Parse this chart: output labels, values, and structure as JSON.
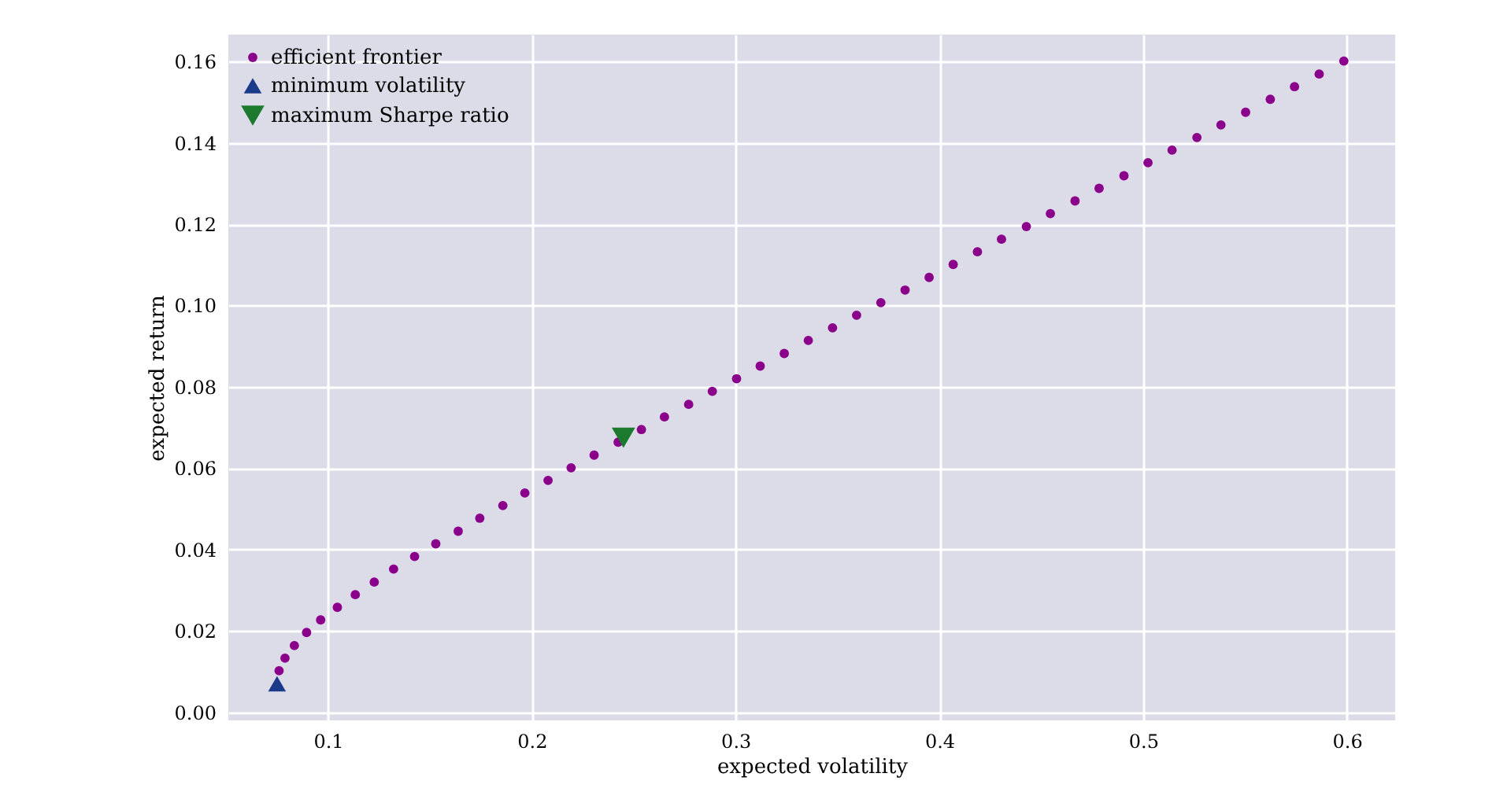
{
  "chart_data": {
    "type": "scatter",
    "xlabel": "expected volatility",
    "ylabel": "expected return",
    "xlim": [
      0.0511,
      0.6237
    ],
    "ylim": [
      -0.002,
      0.1666
    ],
    "xticks": [
      0.1,
      0.2,
      0.3,
      0.4,
      0.5,
      0.6
    ],
    "yticks": [
      {
        "value": 0,
        "label": "0.00"
      },
      {
        "value": 0.02,
        "label": "0.02"
      },
      {
        "value": 0.04,
        "label": "0.04"
      },
      {
        "value": 0.06,
        "label": "0.06"
      },
      {
        "value": 0.08,
        "label": "0.08"
      },
      {
        "value": 0.1,
        "label": "0.10"
      },
      {
        "value": 0.12,
        "label": "0.12"
      },
      {
        "value": 0.14,
        "label": "0.14"
      },
      {
        "value": 0.16,
        "label": "0.16"
      }
    ],
    "grid": true,
    "legend": "top left",
    "series": [
      {
        "name": "efficient frontier",
        "color": "#8b008b",
        "marker": "circle",
        "x": [
          0.076,
          0.0789,
          0.0835,
          0.0895,
          0.0964,
          0.1046,
          0.1134,
          0.1227,
          0.1322,
          0.1425,
          0.1529,
          0.1639,
          0.1745,
          0.1858,
          0.1966,
          0.208,
          0.2193,
          0.2306,
          0.2424,
          0.2538,
          0.2651,
          0.277,
          0.2886,
          0.3005,
          0.3121,
          0.3239,
          0.3357,
          0.3476,
          0.3594,
          0.3713,
          0.3832,
          0.395,
          0.4068,
          0.4187,
          0.4305,
          0.4427,
          0.4545,
          0.4666,
          0.4784,
          0.4906,
          0.5024,
          0.5142,
          0.5264,
          0.5382,
          0.5503,
          0.5624,
          0.5743,
          0.5864,
          0.5985
        ],
        "values": [
          0.0102,
          0.0133,
          0.0164,
          0.0196,
          0.0227,
          0.0258,
          0.0289,
          0.032,
          0.0352,
          0.0383,
          0.0414,
          0.0445,
          0.0477,
          0.0508,
          0.0539,
          0.057,
          0.0601,
          0.0632,
          0.0664,
          0.0695,
          0.0726,
          0.0757,
          0.0789,
          0.082,
          0.0851,
          0.0882,
          0.0914,
          0.0945,
          0.0976,
          0.1007,
          0.1038,
          0.1069,
          0.1101,
          0.1132,
          0.1163,
          0.1194,
          0.1226,
          0.1257,
          0.1288,
          0.1319,
          0.1351,
          0.1382,
          0.1413,
          0.1444,
          0.1475,
          0.1507,
          0.1538,
          0.1569,
          0.1601
        ]
      },
      {
        "name": "minimum volatility",
        "color": "#1a3a8a",
        "marker": "triangle",
        "x": [
          0.075
        ],
        "values": [
          0.007
        ]
      },
      {
        "name": "maximum Sharpe ratio",
        "color": "#1b7a2e",
        "marker": "triangle-down",
        "x": [
          0.245
        ],
        "values": [
          0.0675
        ]
      }
    ]
  }
}
